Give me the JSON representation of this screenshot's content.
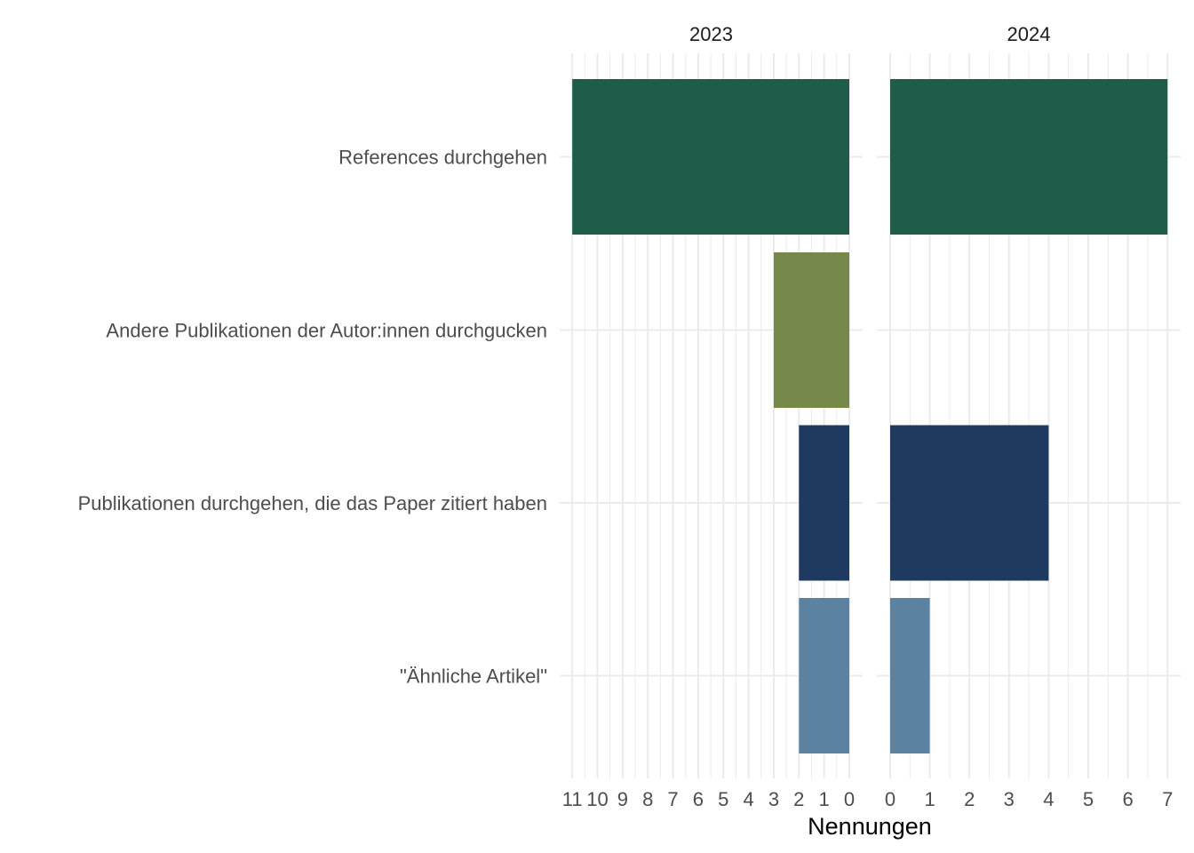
{
  "chart_data": {
    "type": "bar",
    "orientation": "horizontal",
    "xlabel": "Nennungen",
    "categories": [
      "References durchgehen",
      "Andere Publikationen der Autor:innen durchgucken",
      "Publikationen durchgehen, die das Paper zitiert haben",
      "\"Ähnliche Artikel\""
    ],
    "colors": [
      "#1f5c4a",
      "#76884a",
      "#1f3a60",
      "#5b82a0"
    ],
    "grid": true,
    "legend": "none",
    "panels": [
      {
        "label": "2023",
        "direction": "reversed",
        "xlim": [
          0,
          11
        ],
        "ticks": [
          11,
          10,
          9,
          8,
          7,
          6,
          5,
          4,
          3,
          2,
          1,
          0
        ],
        "values": [
          11,
          3,
          2,
          2
        ]
      },
      {
        "label": "2024",
        "direction": "normal",
        "xlim": [
          0,
          7
        ],
        "ticks": [
          0,
          1,
          2,
          3,
          4,
          5,
          6,
          7
        ],
        "values": [
          7,
          0,
          4,
          1
        ]
      }
    ]
  }
}
